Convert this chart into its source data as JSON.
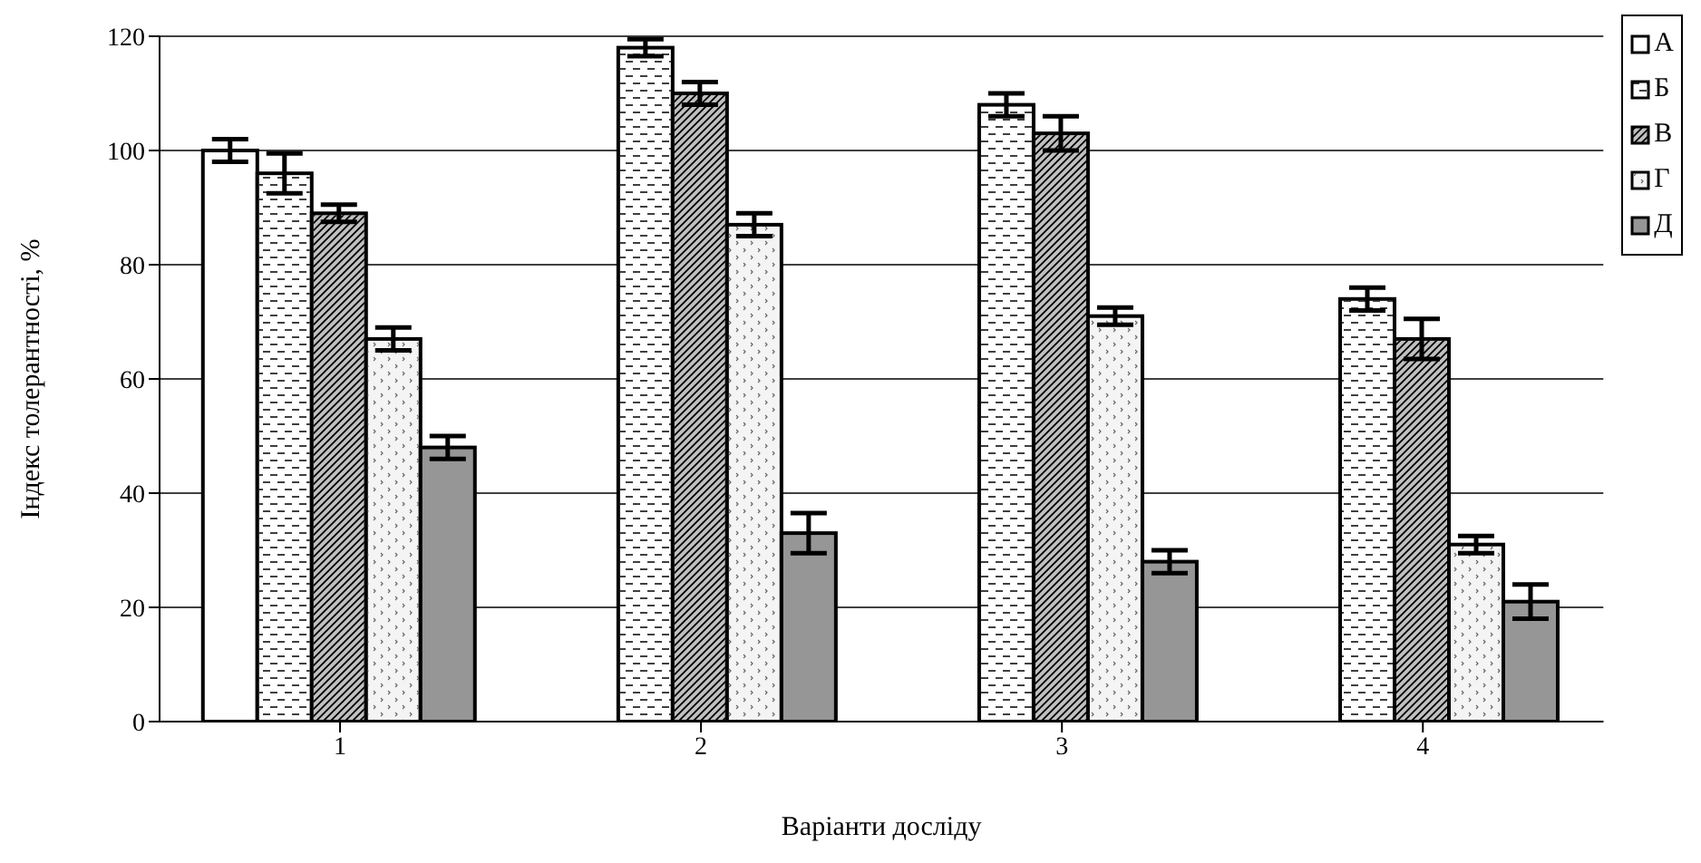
{
  "chart_data": {
    "type": "bar",
    "xlabel": "Варіанти досліду",
    "ylabel": "Індекс толерантності, %",
    "categories": [
      "1",
      "2",
      "3",
      "4"
    ],
    "series": [
      {
        "name": "А",
        "color": "#ffffff",
        "values": [
          100,
          null,
          null,
          null
        ],
        "errors": [
          2,
          null,
          null,
          null
        ]
      },
      {
        "name": "Б",
        "color": "#ffffff",
        "values": [
          96,
          118,
          108,
          74
        ],
        "errors": [
          3.5,
          1.5,
          2,
          2
        ]
      },
      {
        "name": "В",
        "color": "#c0c0c0",
        "values": [
          89,
          110,
          103,
          67
        ],
        "errors": [
          1.5,
          2,
          3,
          3.5
        ]
      },
      {
        "name": "Г",
        "color": "#f4f4f4",
        "values": [
          67,
          87,
          71,
          31
        ],
        "errors": [
          2,
          2,
          1.5,
          1.5
        ]
      },
      {
        "name": "Д",
        "color": "#969696",
        "values": [
          48,
          33,
          28,
          21
        ],
        "errors": [
          2,
          3.5,
          2,
          3
        ]
      }
    ],
    "ylim": [
      0,
      120
    ],
    "yticks": [
      0,
      20,
      40,
      60,
      80,
      100,
      120
    ],
    "grid": "y",
    "legend": "right"
  }
}
